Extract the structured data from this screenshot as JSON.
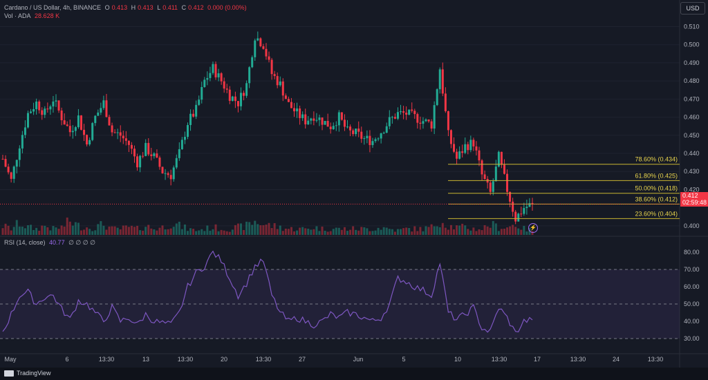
{
  "header": {
    "symbol": "Cardano / US Dollar, 4h, BINANCE",
    "o_label": "O",
    "o": "0.413",
    "h_label": "H",
    "h": "0.413",
    "l_label": "L",
    "l": "0.411",
    "c_label": "C",
    "c": "0.412",
    "change": "0.000 (0.00%)",
    "vol_label": "Vol · ADA",
    "vol": "28.628 K"
  },
  "currency_button": "USD",
  "price_tag": {
    "price": "0.412",
    "countdown": "02:59:48"
  },
  "rsi_legend": {
    "label": "RSI (14, close)",
    "value": "40.77",
    "icons": "∅ ∅ ∅ ∅"
  },
  "footer": {
    "brand": "TradingView"
  },
  "colors": {
    "up": "#22ab94",
    "down": "#f23645",
    "fib": "#c9b532",
    "rsi": "#7e57c2",
    "background": "#161a25"
  },
  "chart_data": [
    {
      "type": "candlestick",
      "title": "Cardano / US Dollar, 4h, BINANCE",
      "interval": "4h",
      "ylim": [
        0.395,
        0.514
      ],
      "y_ticks": [
        "0.510",
        "0.500",
        "0.490",
        "0.480",
        "0.470",
        "0.460",
        "0.450",
        "0.440",
        "0.430",
        "0.420",
        "0.400"
      ],
      "x_ticks": [
        "May",
        "6",
        "13:30",
        "13",
        "13:30",
        "20",
        "13:30",
        "27",
        "Jun",
        "5",
        "10",
        "13:30",
        "17",
        "13:30",
        "24",
        "13:30"
      ],
      "last_price": 0.412,
      "fib_levels": [
        {
          "label": "78.60% (0.434)",
          "value": 0.434
        },
        {
          "label": "61.80% (0.425)",
          "value": 0.425
        },
        {
          "label": "50.00% (0.418)",
          "value": 0.418
        },
        {
          "label": "38.60% (0.412)",
          "value": 0.412
        },
        {
          "label": "23.60% (0.404)",
          "value": 0.404
        }
      ],
      "anchors": [
        0.437,
        0.425,
        0.445,
        0.462,
        0.468,
        0.462,
        0.47,
        0.46,
        0.452,
        0.46,
        0.445,
        0.46,
        0.468,
        0.452,
        0.45,
        0.445,
        0.435,
        0.443,
        0.438,
        0.43,
        0.428,
        0.44,
        0.457,
        0.464,
        0.48,
        0.487,
        0.48,
        0.472,
        0.468,
        0.478,
        0.505,
        0.5,
        0.484,
        0.478,
        0.467,
        0.462,
        0.458,
        0.461,
        0.458,
        0.455,
        0.46,
        0.452,
        0.451,
        0.448,
        0.447,
        0.452,
        0.458,
        0.462,
        0.462,
        0.46,
        0.458,
        0.456,
        0.487,
        0.45,
        0.437,
        0.444,
        0.446,
        0.428,
        0.418,
        0.438,
        0.42,
        0.404,
        0.41,
        0.412
      ],
      "volume_profile": [
        6,
        4,
        8,
        5,
        4,
        6,
        4,
        5,
        9,
        6,
        5,
        5,
        7,
        4,
        4,
        5,
        4,
        6,
        4,
        5,
        8,
        6,
        4,
        3,
        4,
        5,
        4,
        4,
        5,
        6,
        9,
        7,
        6,
        5,
        4,
        4,
        4,
        5,
        4,
        4,
        4,
        4,
        4,
        4,
        4,
        5,
        4,
        3,
        4,
        4,
        4,
        5,
        10,
        6,
        5,
        5,
        4,
        4,
        7,
        5,
        5,
        7,
        4,
        3
      ]
    },
    {
      "type": "line",
      "title": "RSI (14, close)",
      "last_value": 40.77,
      "ylim": [
        26,
        84
      ],
      "y_ticks": [
        "80.00",
        "70.00",
        "60.00",
        "50.00",
        "40.00",
        "30.00"
      ],
      "bands": [
        70,
        50,
        30
      ],
      "anchors": [
        34,
        44,
        55,
        57,
        50,
        54,
        55,
        47,
        41,
        52,
        50,
        45,
        40,
        48,
        40,
        42,
        38,
        44,
        40,
        39,
        38,
        45,
        60,
        68,
        72,
        80,
        75,
        65,
        55,
        62,
        72,
        75,
        55,
        45,
        40,
        42,
        40,
        38,
        40,
        44,
        42,
        45,
        44,
        42,
        40,
        42,
        50,
        65,
        63,
        60,
        58,
        55,
        74,
        45,
        41,
        44,
        48,
        36,
        34,
        48,
        42,
        33,
        40,
        40.77
      ]
    }
  ]
}
